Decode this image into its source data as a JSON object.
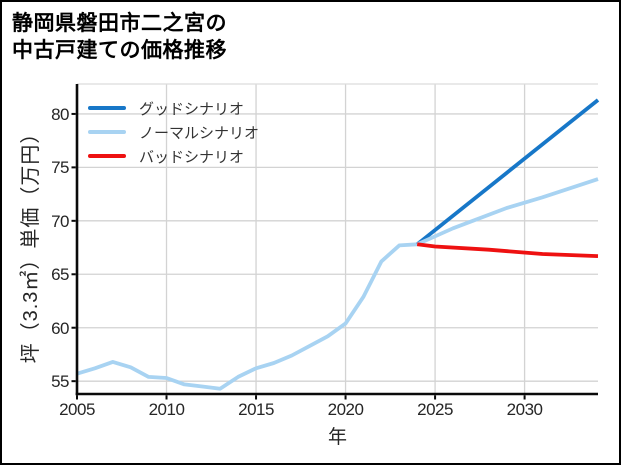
{
  "title": {
    "line1": "静岡県磐田市二之宮の",
    "line2": "中古戸建ての価格推移"
  },
  "chart_data": {
    "type": "line",
    "title": "静岡県磐田市二之宮の中古戸建ての価格推移",
    "xlabel": "年",
    "ylabel": "坪（3.3㎡）単価（万円）",
    "xlim": [
      2005,
      2034.1
    ],
    "ylim": [
      53.8,
      82.8
    ],
    "x_ticks": [
      2005,
      2010,
      2015,
      2020,
      2025,
      2030
    ],
    "y_ticks": [
      55,
      60,
      65,
      70,
      75,
      80
    ],
    "grid": true,
    "legend_position": "upper-left",
    "legend": [
      {
        "label": "グッドシナリオ",
        "color": "#1777c8"
      },
      {
        "label": "ノーマルシナリオ",
        "color": "#a8d3f2"
      },
      {
        "label": "バッドシナリオ",
        "color": "#ee1111"
      }
    ],
    "colors": {
      "good": "#1777c8",
      "normal": "#a8d3f2",
      "bad": "#ee1111",
      "grid": "#d3d3d3",
      "plot_border": "#dcdcdc",
      "axis": "#0a0a0a",
      "text": "#262626"
    },
    "series": [
      {
        "id": "price-history",
        "color": "normal",
        "x": [
          2005,
          2006,
          2007,
          2008,
          2009,
          2010,
          2011,
          2012,
          2013,
          2014,
          2015,
          2016,
          2017,
          2018,
          2019,
          2020,
          2021,
          2022,
          2023,
          2024
        ],
        "y": [
          55.7,
          56.2,
          56.8,
          56.3,
          55.4,
          55.3,
          54.7,
          54.5,
          54.3,
          55.4,
          56.2,
          56.7,
          57.4,
          58.3,
          59.2,
          60.4,
          62.9,
          66.2,
          67.7,
          67.8
        ]
      },
      {
        "id": "good-scenario",
        "legend_label": "グッドシナリオ",
        "color": "good",
        "x": [
          2024,
          2034.1
        ],
        "y": [
          67.8,
          81.3
        ]
      },
      {
        "id": "normal-scenario",
        "legend_label": "ノーマルシナリオ",
        "color": "normal",
        "x": [
          2024,
          2026,
          2029,
          2031,
          2034.1
        ],
        "y": [
          67.8,
          69.3,
          71.2,
          72.2,
          73.9
        ]
      },
      {
        "id": "bad-scenario",
        "legend_label": "バッドシナリオ",
        "color": "bad",
        "x": [
          2024,
          2025,
          2028,
          2031,
          2034.1
        ],
        "y": [
          67.8,
          67.6,
          67.3,
          66.9,
          66.7
        ]
      }
    ]
  }
}
